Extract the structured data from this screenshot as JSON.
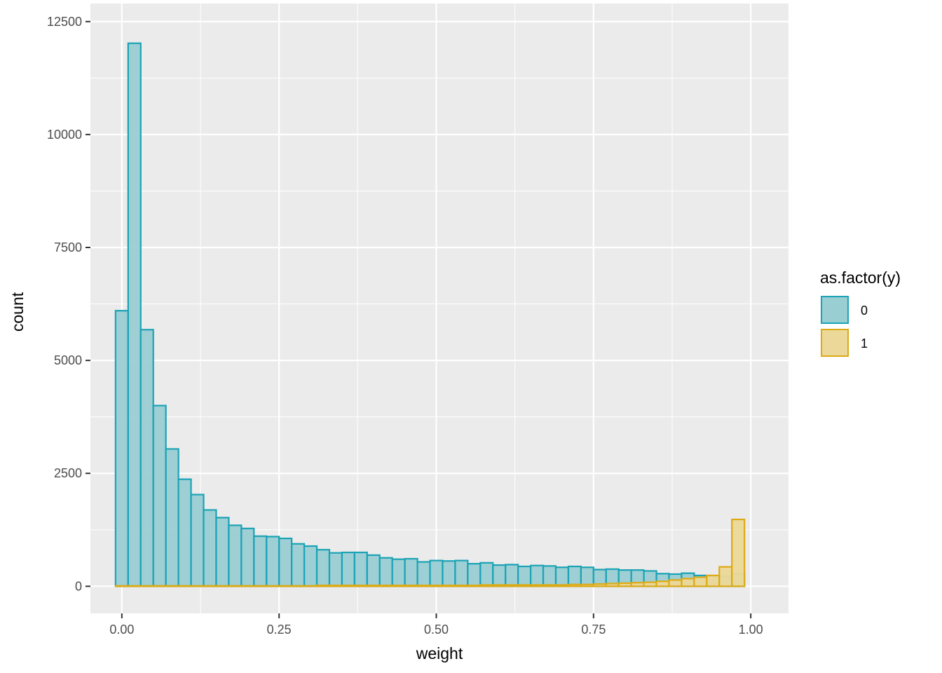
{
  "chart_data": {
    "type": "histogram",
    "xlabel": "weight",
    "ylabel": "count",
    "xlim": [
      -0.05,
      1.06
    ],
    "ylim": [
      -600,
      12900
    ],
    "x_ticks": [
      0.0,
      0.25,
      0.5,
      0.75,
      1.0
    ],
    "x_tick_labels": [
      "0.00",
      "0.25",
      "0.50",
      "0.75",
      "1.00"
    ],
    "y_ticks": [
      0,
      2500,
      5000,
      7500,
      10000,
      12500
    ],
    "y_tick_labels": [
      "0",
      "2500",
      "5000",
      "7500",
      "10000",
      "12500"
    ],
    "bin_start": -0.01,
    "bin_width": 0.02,
    "grid": true,
    "legend": {
      "title": "as.factor(y)",
      "position": "right",
      "entries": [
        "0",
        "1"
      ]
    },
    "series": [
      {
        "name": "0",
        "fill": "#99ced3",
        "stroke": "#1ba3b5",
        "values": [
          6100,
          12020,
          5680,
          4000,
          3040,
          2370,
          2030,
          1690,
          1520,
          1350,
          1280,
          1110,
          1100,
          1060,
          940,
          890,
          810,
          740,
          750,
          750,
          690,
          630,
          600,
          610,
          540,
          570,
          560,
          570,
          500,
          520,
          470,
          480,
          440,
          460,
          450,
          420,
          440,
          420,
          370,
          380,
          360,
          360,
          340,
          280,
          270,
          290,
          240,
          230,
          220,
          270
        ]
      },
      {
        "name": "1",
        "fill": "#ecd898",
        "stroke": "#dcaa14",
        "values": [
          10,
          10,
          10,
          10,
          10,
          10,
          10,
          10,
          10,
          10,
          10,
          10,
          10,
          10,
          10,
          10,
          20,
          20,
          20,
          20,
          20,
          20,
          20,
          20,
          20,
          20,
          20,
          20,
          20,
          30,
          30,
          30,
          30,
          30,
          30,
          30,
          40,
          40,
          50,
          60,
          70,
          80,
          90,
          110,
          140,
          170,
          200,
          240,
          430,
          1480
        ]
      }
    ]
  }
}
